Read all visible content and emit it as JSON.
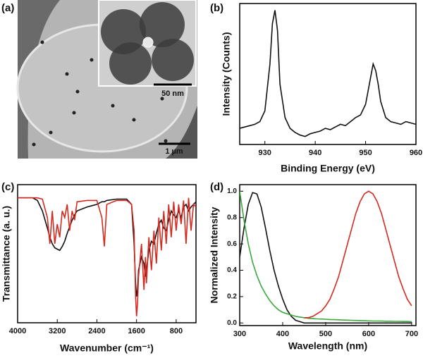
{
  "chart_data": [
    {
      "type": "image",
      "panel_label": "(a)",
      "inset_scale_bar": "50 nm",
      "scale_bar": "1 µm"
    },
    {
      "type": "line",
      "panel_label": "(b)",
      "xlabel": "Binding Energy (eV)",
      "ylabel": "Intensity (Counts)",
      "xlim": [
        925,
        960
      ],
      "xticks": [
        930,
        940,
        950,
        960
      ],
      "ylim": [
        0,
        1.05
      ],
      "x": [
        925,
        926,
        927,
        928,
        929,
        930,
        931,
        931.5,
        932,
        932.5,
        933,
        934,
        935,
        936,
        937,
        938,
        939,
        940,
        941,
        942,
        943,
        944,
        945,
        946,
        947,
        948,
        949,
        950,
        951,
        951.5,
        952,
        952.5,
        953,
        954,
        955,
        956,
        957,
        958,
        959,
        960
      ],
      "values": [
        0.12,
        0.13,
        0.14,
        0.15,
        0.17,
        0.25,
        0.6,
        0.9,
        1.0,
        0.85,
        0.45,
        0.2,
        0.12,
        0.09,
        0.07,
        0.06,
        0.08,
        0.09,
        0.1,
        0.12,
        0.11,
        0.13,
        0.15,
        0.14,
        0.17,
        0.2,
        0.22,
        0.3,
        0.5,
        0.6,
        0.55,
        0.45,
        0.32,
        0.2,
        0.17,
        0.16,
        0.15,
        0.17,
        0.16,
        0.15
      ],
      "color": "#111111"
    },
    {
      "type": "line",
      "panel_label": "(c)",
      "xlabel": "Wavenumber (cm⁻¹)",
      "ylabel": "Transmittance (a. u.)",
      "xlim": [
        4000,
        400
      ],
      "xticks": [
        4000,
        3200,
        2400,
        1600,
        800
      ],
      "ylim": [
        0,
        1.05
      ],
      "x": [
        4000,
        3700,
        3600,
        3500,
        3400,
        3350,
        3300,
        3250,
        3200,
        3150,
        3100,
        3050,
        3000,
        2950,
        2900,
        2850,
        2800,
        2600,
        2400,
        2300,
        2250,
        2200,
        2000,
        1800,
        1700,
        1650,
        1620,
        1600,
        1580,
        1560,
        1500,
        1450,
        1420,
        1400,
        1350,
        1300,
        1250,
        1200,
        1150,
        1100,
        1050,
        1000,
        950,
        900,
        850,
        800,
        750,
        700,
        650,
        600,
        550,
        500,
        450,
        400
      ],
      "series": [
        {
          "color": "#111111",
          "values": [
            0.95,
            0.95,
            0.93,
            0.85,
            0.72,
            0.65,
            0.6,
            0.57,
            0.56,
            0.55,
            0.58,
            0.62,
            0.68,
            0.73,
            0.78,
            0.82,
            0.85,
            0.88,
            0.9,
            0.92,
            0.92,
            0.93,
            0.94,
            0.94,
            0.9,
            0.6,
            0.3,
            0.2,
            0.25,
            0.4,
            0.5,
            0.45,
            0.35,
            0.4,
            0.55,
            0.62,
            0.6,
            0.68,
            0.75,
            0.78,
            0.72,
            0.7,
            0.78,
            0.85,
            0.82,
            0.8,
            0.85,
            0.8,
            0.88,
            0.9,
            0.85,
            0.88,
            0.9,
            0.92
          ]
        },
        {
          "color": "#d42a20",
          "values": [
            0.95,
            0.95,
            0.95,
            0.94,
            0.8,
            0.6,
            0.85,
            0.6,
            0.75,
            0.65,
            0.85,
            0.8,
            0.9,
            0.7,
            0.85,
            0.78,
            0.92,
            0.93,
            0.93,
            0.8,
            0.58,
            0.9,
            0.93,
            0.93,
            0.9,
            0.7,
            0.2,
            0.05,
            0.15,
            0.35,
            0.6,
            0.25,
            0.5,
            0.3,
            0.65,
            0.4,
            0.7,
            0.45,
            0.8,
            0.55,
            0.85,
            0.6,
            0.9,
            0.65,
            0.92,
            0.7,
            0.9,
            0.75,
            0.93,
            0.6,
            0.95,
            0.7,
            0.9,
            0.88
          ]
        }
      ]
    },
    {
      "type": "line",
      "panel_label": "(d)",
      "xlabel": "Wavelength (nm)",
      "ylabel": "Normalized Intensity",
      "xlim": [
        300,
        710
      ],
      "xticks": [
        300,
        400,
        500,
        600,
        700
      ],
      "ylim": [
        -0.02,
        1.05
      ],
      "yticks": [
        {
          "value": 0,
          "label": "0.0"
        },
        0.2,
        0.4,
        0.6,
        0.8,
        {
          "value": 1,
          "label": "1.0"
        }
      ],
      "x": [
        300,
        310,
        320,
        330,
        340,
        350,
        360,
        370,
        380,
        390,
        400,
        410,
        420,
        430,
        440,
        450,
        460,
        470,
        480,
        490,
        500,
        510,
        520,
        530,
        540,
        550,
        560,
        570,
        580,
        590,
        600,
        610,
        620,
        630,
        640,
        650,
        660,
        670,
        680,
        690,
        700
      ],
      "series": [
        {
          "color": "#111111",
          "values": [
            0.5,
            0.72,
            0.9,
            0.99,
            0.98,
            0.88,
            0.72,
            0.55,
            0.4,
            0.28,
            0.18,
            0.1,
            0.05,
            0.02,
            0.01,
            0,
            0,
            0,
            0,
            0,
            0,
            0,
            0,
            0,
            0,
            0,
            0,
            0,
            0,
            0,
            0,
            0,
            0,
            0,
            0,
            0,
            0,
            0,
            0,
            0,
            0
          ]
        },
        {
          "color": "#3aa83a",
          "values": [
            1.0,
            0.78,
            0.6,
            0.46,
            0.36,
            0.28,
            0.22,
            0.17,
            0.13,
            0.1,
            0.08,
            0.07,
            0.06,
            0.05,
            0.045,
            0.04,
            0.035,
            0.033,
            0.031,
            0.03,
            0.028,
            0.026,
            0.025,
            0.024,
            0.022,
            0.021,
            0.02,
            0.019,
            0.018,
            0.017,
            0.016,
            0.015,
            0.015,
            0.014,
            0.013,
            0.013,
            0.012,
            0.012,
            0.011,
            0.011,
            0.01
          ]
        },
        {
          "color": "#d42a20",
          "values": [
            null,
            null,
            null,
            null,
            null,
            null,
            null,
            null,
            null,
            null,
            null,
            null,
            null,
            null,
            null,
            0.04,
            0.04,
            0.05,
            0.07,
            0.09,
            0.13,
            0.18,
            0.26,
            0.35,
            0.47,
            0.59,
            0.71,
            0.83,
            0.92,
            0.98,
            1.0,
            0.98,
            0.92,
            0.83,
            0.71,
            0.59,
            0.47,
            0.35,
            0.26,
            0.18,
            0.13
          ]
        }
      ]
    }
  ]
}
